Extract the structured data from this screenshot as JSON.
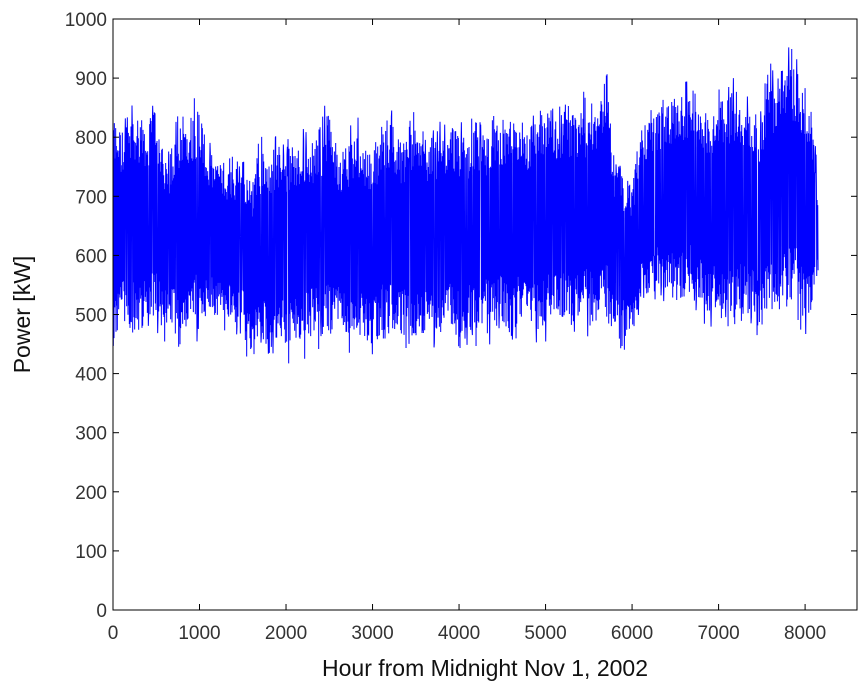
{
  "chart_data": {
    "type": "line",
    "title": "",
    "xlabel": "Hour from Midnight Nov 1, 2002",
    "ylabel": "Power [kW]",
    "xlim": [
      0,
      8600
    ],
    "ylim": [
      0,
      1000
    ],
    "xticks": [
      0,
      1000,
      2000,
      3000,
      4000,
      5000,
      6000,
      7000,
      8000
    ],
    "yticks": [
      0,
      100,
      200,
      300,
      400,
      500,
      600,
      700,
      800,
      900,
      1000
    ],
    "grid": false,
    "legend": "none",
    "series_color": "#0000ff",
    "series": [
      {
        "x": [
          0,
          100,
          200,
          300,
          400,
          500,
          600,
          700,
          800,
          900,
          1000,
          1100,
          1200,
          1300,
          1400,
          1500,
          1600,
          1700,
          1800,
          1900,
          2000,
          2100,
          2200,
          2300,
          2400,
          2500,
          2600,
          2700,
          2800,
          2900,
          3000,
          3100,
          3200,
          3300,
          3400,
          3500,
          3600,
          3700,
          3800,
          3900,
          4000,
          4100,
          4200,
          4300,
          4400,
          4500,
          4600,
          4700,
          4800,
          4900,
          5000,
          5100,
          5200,
          5300,
          5400,
          5500,
          5600,
          5700,
          5800,
          5900,
          6000,
          6100,
          6200,
          6300,
          6400,
          6500,
          6600,
          6700,
          6800,
          6900,
          7000,
          7100,
          7200,
          7300,
          7400,
          7500,
          7600,
          7700,
          7800,
          7900,
          8000,
          8100,
          8150
        ],
        "max": [
          880,
          840,
          860,
          880,
          850,
          890,
          780,
          810,
          880,
          870,
          890,
          800,
          790,
          780,
          770,
          760,
          760,
          800,
          810,
          820,
          810,
          820,
          830,
          820,
          840,
          880,
          800,
          820,
          840,
          820,
          810,
          850,
          870,
          830,
          830,
          850,
          820,
          830,
          830,
          860,
          850,
          810,
          860,
          830,
          870,
          850,
          860,
          850,
          850,
          870,
          880,
          860,
          860,
          870,
          880,
          880,
          860,
          970,
          780,
          760,
          740,
          850,
          860,
          870,
          890,
          900,
          900,
          910,
          890,
          880,
          890,
          900,
          920,
          880,
          880,
          870,
          930,
          920,
          960,
          950,
          890,
          850,
          720
        ],
        "min": [
          410,
          450,
          440,
          430,
          470,
          460,
          450,
          450,
          440,
          450,
          450,
          480,
          470,
          470,
          460,
          460,
          390,
          430,
          410,
          420,
          410,
          420,
          420,
          440,
          440,
          430,
          460,
          420,
          440,
          420,
          410,
          440,
          430,
          430,
          440,
          420,
          430,
          440,
          430,
          440,
          430,
          450,
          440,
          460,
          440,
          460,
          430,
          460,
          450,
          440,
          450,
          460,
          460,
          450,
          470,
          460,
          450,
          450,
          440,
          440,
          440,
          500,
          510,
          520,
          510,
          490,
          500,
          510,
          490,
          470,
          470,
          480,
          450,
          480,
          470,
          450,
          470,
          470,
          480,
          490,
          450,
          480,
          550
        ]
      }
    ]
  }
}
